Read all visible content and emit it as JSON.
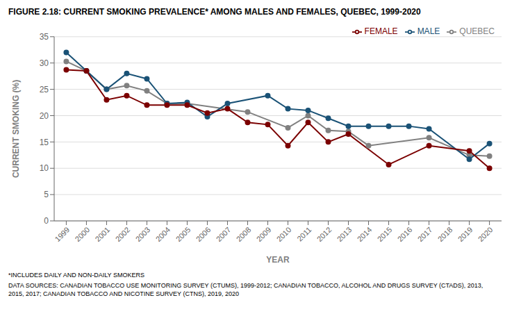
{
  "chart_data": {
    "type": "line",
    "title": "FIGURE 2.18: CURRENT SMOKING PREVALENCE* AMONG MALES AND FEMALES, QUEBEC, 1999-2020",
    "x_label": "YEAR",
    "y_label": "CURRENT SMOKING (%)",
    "annotations": [
      "*INCLUDES DAILY AND NON-DAILY SMOKERS",
      "DATA SOURCES: CANADIAN TOBACCO USE MONITORING SURVEY (CTUMS), 1999-2012; CANADIAN TOBACCO, ALCOHOL AND DRUGS SURVEY (CTADS), 2013,\n2015, 2017; CANADIAN TOBACCO AND NICOTINE SURVEY (CTNS), 2019, 2020"
    ],
    "series": [
      {
        "name": "QUEBEC",
        "color": "#808080",
        "marker": "circle",
        "x": [
          1999,
          2000,
          2001,
          2002,
          2003,
          2004,
          2005,
          2008,
          2010,
          2011,
          2012,
          2013,
          2014,
          2017,
          2019,
          2020
        ],
        "values": [
          30.3,
          28.5,
          25.0,
          25.7,
          24.7,
          22.3,
          22.3,
          20.7,
          17.7,
          20.0,
          17.2,
          17.0,
          14.3,
          15.8,
          12.5,
          12.3
        ]
      },
      {
        "name": "MALE",
        "color": "#1a5276",
        "marker": "circle",
        "x": [
          1999,
          2000,
          2001,
          2002,
          2003,
          2004,
          2005,
          2006,
          2007,
          2009,
          2010,
          2011,
          2012,
          2013,
          2014,
          2015,
          2016,
          2017,
          2019,
          2020
        ],
        "values": [
          32.0,
          28.5,
          25.0,
          28.0,
          27.0,
          22.3,
          22.5,
          19.8,
          22.3,
          23.8,
          21.3,
          21.0,
          19.5,
          18.0,
          18.0,
          18.0,
          18.0,
          17.5,
          11.7,
          14.7
        ]
      },
      {
        "name": "FEMALE",
        "color": "#7b0000",
        "marker": "circle",
        "x": [
          1999,
          2000,
          2001,
          2002,
          2003,
          2004,
          2005,
          2006,
          2007,
          2008,
          2009,
          2010,
          2011,
          2012,
          2013,
          2015,
          2017,
          2019,
          2020
        ],
        "values": [
          28.7,
          28.5,
          23.0,
          23.8,
          22.0,
          22.0,
          22.0,
          20.5,
          21.3,
          18.7,
          18.3,
          14.3,
          18.7,
          15.0,
          16.5,
          10.7,
          14.3,
          13.3,
          10.0
        ]
      }
    ],
    "xlim": [
      1998.4,
      2020.6
    ],
    "xticks": [
      1999,
      2000,
      2001,
      2002,
      2003,
      2004,
      2005,
      2006,
      2007,
      2008,
      2009,
      2010,
      2011,
      2012,
      2013,
      2014,
      2015,
      2016,
      2017,
      2018,
      2019,
      2020
    ],
    "ylim": [
      0,
      35
    ],
    "yticks": [
      0,
      5,
      10,
      15,
      20,
      25,
      30,
      35
    ],
    "grid": "y",
    "legend": "upper right"
  }
}
